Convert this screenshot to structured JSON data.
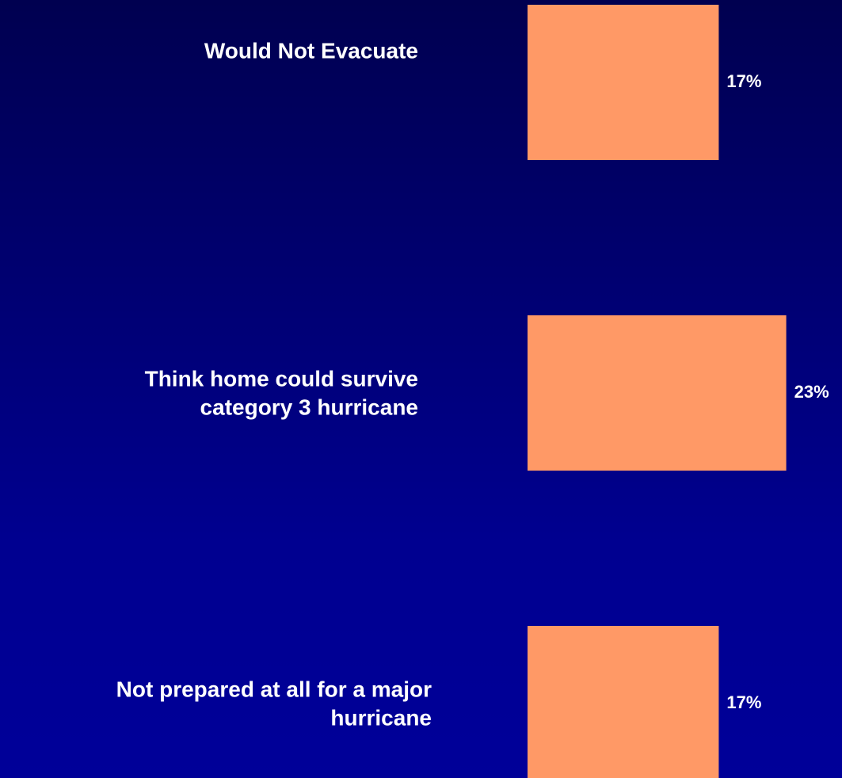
{
  "chart_data": {
    "type": "bar",
    "orientation": "horizontal",
    "categories": [
      [
        "Would Not Evacuate"
      ],
      [
        "Think home could survive",
        "category 3 hurricane"
      ],
      [
        "Not prepared at all for a major",
        "hurricane"
      ]
    ],
    "values": [
      17,
      23,
      17
    ],
    "value_labels": [
      "17%",
      "23%",
      "17%"
    ],
    "bar_color": "#FF9966",
    "label_color": "#FFFFFF",
    "grid": false,
    "legend": "none"
  }
}
